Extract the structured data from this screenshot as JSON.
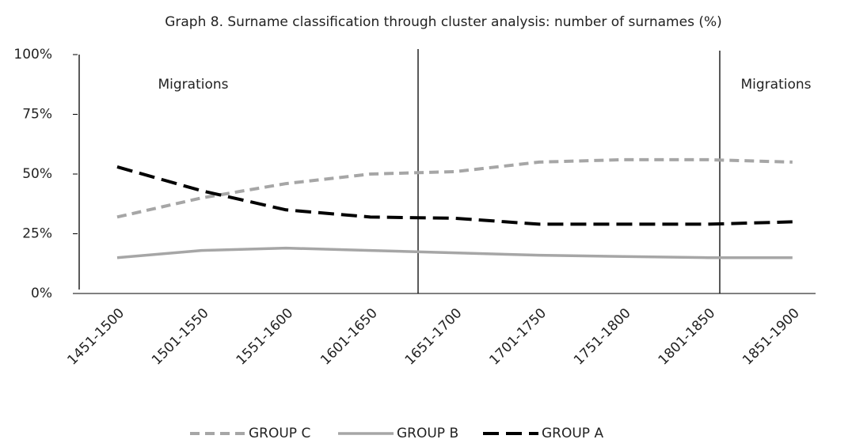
{
  "chart_data": {
    "type": "line",
    "title": "Graph 8. Surname classification through cluster analysis: number of surnames (%)",
    "categories": [
      "1451-1500",
      "1501-1550",
      "1551-1600",
      "1601-1650",
      "1651-1700",
      "1701-1750",
      "1751-1800",
      "1801-1850",
      "1851-1900"
    ],
    "series": [
      {
        "name": "GROUP C",
        "color": "#a6a6a6",
        "values": [
          32,
          40,
          46,
          50,
          51,
          55,
          56,
          56,
          55
        ]
      },
      {
        "name": "GROUP B",
        "color": "#a6a6a6",
        "values": [
          15,
          18,
          19,
          18,
          17,
          16,
          15.5,
          15,
          15
        ]
      },
      {
        "name": "GROUP A",
        "color": "#000000",
        "values": [
          53,
          43,
          35,
          32,
          31.5,
          29,
          29,
          29,
          30
        ]
      }
    ],
    "ylim": [
      0,
      100
    ],
    "yticks": [
      {
        "value": 0,
        "label": "0%"
      },
      {
        "value": 25,
        "label": "25%"
      },
      {
        "value": 50,
        "label": "50%"
      },
      {
        "value": 75,
        "label": "75%"
      },
      {
        "value": 100,
        "label": "100%"
      }
    ],
    "annotations": [
      "Migrations",
      "Migrations"
    ],
    "legend": "bottom"
  }
}
